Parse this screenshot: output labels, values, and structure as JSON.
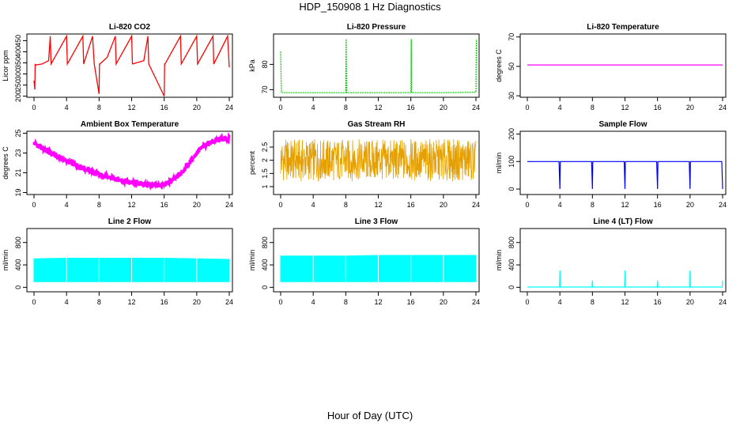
{
  "figure": {
    "title": "HDP_150908  1 Hz Diagnostics",
    "xlabel": "Hour of Day (UTC)"
  },
  "chart_data": [
    {
      "type": "line",
      "title": "Li-820 CO2",
      "ylabel": "Licor ppm",
      "xlim": [
        0,
        24
      ],
      "ylim": [
        195,
        480
      ],
      "xticks": [
        0,
        4,
        8,
        12,
        16,
        20,
        24
      ],
      "yticks": [
        200,
        250,
        300,
        350,
        400,
        450
      ],
      "color": "#ff0000",
      "series": [
        {
          "x": [
            0,
            0.1,
            0.15,
            0.2,
            1,
            1.8,
            2,
            2.1,
            4,
            4.1,
            6,
            6.1,
            7.2,
            7.4,
            8,
            8.05,
            8.1,
            9,
            10,
            10.1,
            12,
            12.1,
            13.5,
            14,
            14.1,
            16,
            16.05,
            16.1,
            18,
            18.1,
            20,
            20.1,
            22,
            22.1,
            23.8,
            24
          ],
          "y": [
            270,
            230,
            345,
            340,
            345,
            360,
            470,
            345,
            470,
            345,
            470,
            345,
            470,
            345,
            210,
            345,
            345,
            375,
            470,
            345,
            470,
            345,
            360,
            470,
            345,
            200,
            345,
            345,
            470,
            345,
            470,
            345,
            470,
            345,
            470,
            330
          ]
        }
      ]
    },
    {
      "type": "line",
      "title": "Li-820 Pressure",
      "ylabel": "kPa",
      "xlim": [
        0,
        24
      ],
      "ylim": [
        67,
        92
      ],
      "xticks": [
        0,
        4,
        8,
        12,
        16,
        20,
        24
      ],
      "yticks": [
        70,
        80
      ],
      "color": "#00cc00",
      "series": [
        {
          "x": [
            0,
            0.05,
            0.1,
            0.3,
            4,
            8,
            8.05,
            8.1,
            12,
            16,
            16.05,
            16.1,
            20,
            24,
            24.05
          ],
          "y": [
            85,
            76,
            69,
            68.8,
            68.8,
            68.8,
            90,
            68.8,
            68.8,
            68.8,
            90,
            68.8,
            68.8,
            69,
            90
          ]
        }
      ]
    },
    {
      "type": "line",
      "title": "Li-820 Temperature",
      "ylabel": "degrees C",
      "xlim": [
        0,
        24
      ],
      "ylim": [
        29,
        72
      ],
      "xticks": [
        0,
        4,
        8,
        12,
        16,
        20,
        24
      ],
      "yticks": [
        30,
        50,
        70
      ],
      "color": "#ff00ff",
      "series": [
        {
          "x": [
            0,
            24
          ],
          "y": [
            51,
            51
          ]
        }
      ]
    },
    {
      "type": "line",
      "title": "Ambient Box Temperature",
      "ylabel": "degrees C",
      "xlim": [
        0,
        24
      ],
      "ylim": [
        18.8,
        25.2
      ],
      "xticks": [
        0,
        4,
        8,
        12,
        16,
        20,
        24
      ],
      "yticks": [
        19,
        21,
        23,
        25
      ],
      "color": "#ff00ff",
      "series": [
        {
          "x": [
            0,
            2,
            4,
            6,
            8,
            10,
            12,
            14,
            15,
            16,
            17,
            18,
            19,
            20,
            21,
            22,
            23,
            24
          ],
          "y": [
            24.0,
            23.0,
            22.2,
            21.5,
            20.8,
            20.4,
            20.0,
            19.8,
            19.7,
            19.8,
            20.2,
            20.9,
            21.9,
            23.0,
            23.8,
            24.2,
            24.4,
            24.5
          ]
        }
      ]
    },
    {
      "type": "line",
      "title": "Gas Stream RH",
      "ylabel": "percent",
      "xlim": [
        0,
        24
      ],
      "ylim": [
        0.7,
        3.1
      ],
      "xticks": [
        0,
        4,
        8,
        12,
        16,
        20,
        24
      ],
      "yticks": [
        1.0,
        1.5,
        2.0,
        2.5
      ],
      "color": "#e5a000",
      "series": [
        {
          "x": [
            0,
            24
          ],
          "y": [
            1.2,
            2.8
          ]
        }
      ]
    },
    {
      "type": "line",
      "title": "Sample Flow",
      "ylabel": "ml/min",
      "xlim": [
        0,
        24
      ],
      "ylim": [
        -20,
        210
      ],
      "xticks": [
        0,
        4,
        8,
        12,
        16,
        20,
        24
      ],
      "yticks": [
        0,
        100,
        200
      ],
      "color": "#0000ff",
      "series": [
        {
          "x": [
            0,
            3.9,
            4,
            4.05,
            7.9,
            8,
            8.05,
            11.9,
            12,
            12.05,
            15.9,
            16,
            16.05,
            19.9,
            20,
            20.05,
            23.9,
            24
          ],
          "y": [
            100,
            100,
            0,
            100,
            100,
            0,
            100,
            100,
            0,
            100,
            100,
            0,
            100,
            100,
            0,
            100,
            100,
            0
          ]
        }
      ]
    },
    {
      "type": "area",
      "title": "Line 2 Flow",
      "ylabel": "ml/min",
      "xlim": [
        0,
        24
      ],
      "ylim": [
        -80,
        1050
      ],
      "xticks": [
        0,
        4,
        8,
        12,
        16,
        20,
        24
      ],
      "yticks": [
        0,
        400,
        800
      ],
      "color": "#00ffff",
      "series": [
        {
          "x": [
            0,
            4,
            8,
            12,
            16,
            20,
            24
          ],
          "low": [
            100,
            100,
            100,
            100,
            100,
            100,
            100
          ],
          "high": [
            510,
            520,
            520,
            520,
            520,
            510,
            500
          ]
        }
      ]
    },
    {
      "type": "area",
      "title": "Line 3 Flow",
      "ylabel": "ml/min",
      "xlim": [
        0,
        24
      ],
      "ylim": [
        -80,
        1050
      ],
      "xticks": [
        0,
        4,
        8,
        12,
        16,
        20,
        24
      ],
      "yticks": [
        0,
        400,
        800
      ],
      "color": "#00ffff",
      "series": [
        {
          "x": [
            0,
            4,
            8,
            12,
            16,
            20,
            24
          ],
          "low": [
            100,
            100,
            100,
            100,
            100,
            100,
            100
          ],
          "high": [
            560,
            560,
            560,
            570,
            570,
            570,
            570
          ]
        }
      ]
    },
    {
      "type": "line",
      "title": "Line 4 (LT) Flow",
      "ylabel": "ml/min",
      "xlim": [
        0,
        24
      ],
      "ylim": [
        -80,
        1050
      ],
      "xticks": [
        0,
        4,
        8,
        12,
        16,
        20,
        24
      ],
      "yticks": [
        0,
        400,
        800
      ],
      "color": "#00ffff",
      "series": [
        {
          "x": [
            0,
            3.95,
            4,
            4.05,
            7.95,
            8,
            8.05,
            11.95,
            12,
            12.05,
            15.95,
            16,
            16.05,
            19.95,
            20,
            20.05,
            23.95,
            24
          ],
          "y": [
            5,
            5,
            300,
            5,
            5,
            120,
            5,
            5,
            300,
            5,
            5,
            120,
            5,
            5,
            300,
            5,
            5,
            120
          ]
        }
      ]
    }
  ]
}
